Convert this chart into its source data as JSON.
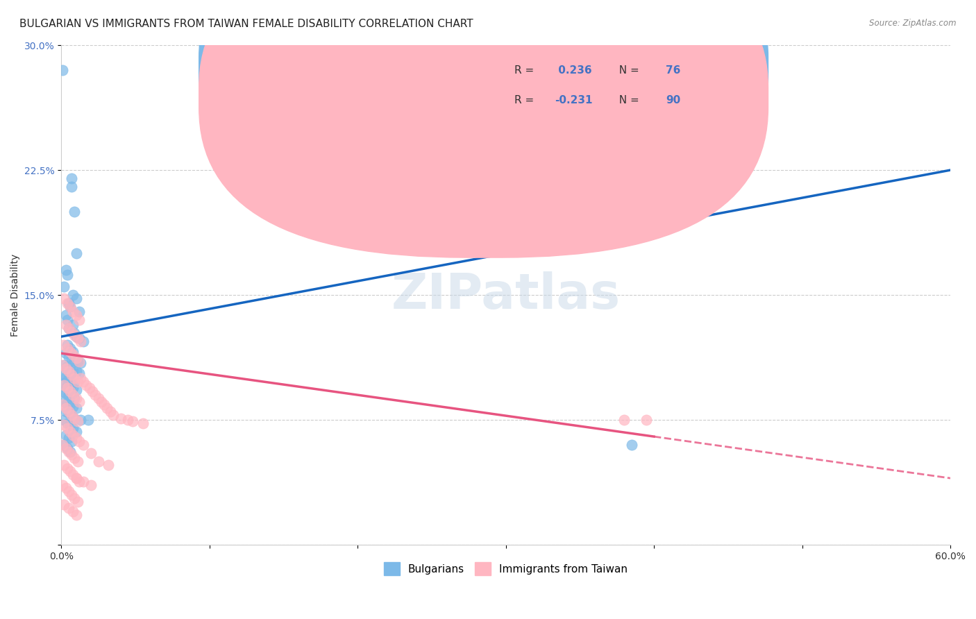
{
  "title": "BULGARIAN VS IMMIGRANTS FROM TAIWAN FEMALE DISABILITY CORRELATION CHART",
  "source": "Source: ZipAtlas.com",
  "ylabel": "Female Disability",
  "xlabel": "",
  "xlim": [
    0.0,
    0.6
  ],
  "ylim": [
    0.0,
    0.3
  ],
  "xticks": [
    0.0,
    0.1,
    0.2,
    0.3,
    0.4,
    0.5,
    0.6
  ],
  "xticklabels": [
    "0.0%",
    "",
    "",
    "",
    "",
    "",
    "60.0%"
  ],
  "yticks": [
    0.0,
    0.075,
    0.15,
    0.225,
    0.3
  ],
  "yticklabels": [
    "",
    "7.5%",
    "15.0%",
    "22.5%",
    "30.0%"
  ],
  "blue_R": 0.236,
  "blue_N": 76,
  "pink_R": -0.231,
  "pink_N": 90,
  "blue_color": "#7CB9E8",
  "pink_color": "#FFB6C1",
  "blue_line_color": "#1565C0",
  "pink_line_color": "#E75480",
  "blue_scatter": [
    [
      0.001,
      0.285
    ],
    [
      0.007,
      0.22
    ],
    [
      0.007,
      0.215
    ],
    [
      0.009,
      0.2
    ],
    [
      0.01,
      0.175
    ],
    [
      0.003,
      0.165
    ],
    [
      0.004,
      0.162
    ],
    [
      0.002,
      0.155
    ],
    [
      0.008,
      0.15
    ],
    [
      0.01,
      0.148
    ],
    [
      0.005,
      0.145
    ],
    [
      0.006,
      0.143
    ],
    [
      0.012,
      0.14
    ],
    [
      0.003,
      0.138
    ],
    [
      0.004,
      0.135
    ],
    [
      0.008,
      0.132
    ],
    [
      0.005,
      0.13
    ],
    [
      0.007,
      0.128
    ],
    [
      0.009,
      0.127
    ],
    [
      0.01,
      0.125
    ],
    [
      0.012,
      0.124
    ],
    [
      0.015,
      0.122
    ],
    [
      0.004,
      0.12
    ],
    [
      0.006,
      0.118
    ],
    [
      0.008,
      0.116
    ],
    [
      0.003,
      0.115
    ],
    [
      0.005,
      0.113
    ],
    [
      0.007,
      0.112
    ],
    [
      0.009,
      0.111
    ],
    [
      0.011,
      0.11
    ],
    [
      0.013,
      0.109
    ],
    [
      0.002,
      0.108
    ],
    [
      0.004,
      0.107
    ],
    [
      0.006,
      0.106
    ],
    [
      0.008,
      0.105
    ],
    [
      0.01,
      0.104
    ],
    [
      0.012,
      0.103
    ],
    [
      0.001,
      0.102
    ],
    [
      0.003,
      0.101
    ],
    [
      0.005,
      0.1
    ],
    [
      0.007,
      0.099
    ],
    [
      0.009,
      0.098
    ],
    [
      0.002,
      0.097
    ],
    [
      0.004,
      0.096
    ],
    [
      0.006,
      0.095
    ],
    [
      0.008,
      0.094
    ],
    [
      0.01,
      0.093
    ],
    [
      0.001,
      0.092
    ],
    [
      0.003,
      0.091
    ],
    [
      0.005,
      0.09
    ],
    [
      0.007,
      0.089
    ],
    [
      0.009,
      0.088
    ],
    [
      0.002,
      0.086
    ],
    [
      0.004,
      0.085
    ],
    [
      0.006,
      0.084
    ],
    [
      0.008,
      0.083
    ],
    [
      0.01,
      0.082
    ],
    [
      0.003,
      0.08
    ],
    [
      0.005,
      0.079
    ],
    [
      0.007,
      0.078
    ],
    [
      0.009,
      0.076
    ],
    [
      0.002,
      0.075
    ],
    [
      0.004,
      0.073
    ],
    [
      0.006,
      0.072
    ],
    [
      0.008,
      0.07
    ],
    [
      0.01,
      0.068
    ],
    [
      0.003,
      0.066
    ],
    [
      0.005,
      0.064
    ],
    [
      0.007,
      0.062
    ],
    [
      0.002,
      0.06
    ],
    [
      0.004,
      0.058
    ],
    [
      0.006,
      0.056
    ],
    [
      0.013,
      0.075
    ],
    [
      0.018,
      0.075
    ],
    [
      0.385,
      0.06
    ]
  ],
  "pink_scatter": [
    [
      0.002,
      0.148
    ],
    [
      0.004,
      0.145
    ],
    [
      0.006,
      0.143
    ],
    [
      0.008,
      0.14
    ],
    [
      0.01,
      0.138
    ],
    [
      0.012,
      0.135
    ],
    [
      0.003,
      0.132
    ],
    [
      0.005,
      0.13
    ],
    [
      0.007,
      0.128
    ],
    [
      0.009,
      0.126
    ],
    [
      0.011,
      0.124
    ],
    [
      0.013,
      0.122
    ],
    [
      0.002,
      0.12
    ],
    [
      0.004,
      0.118
    ],
    [
      0.006,
      0.116
    ],
    [
      0.008,
      0.114
    ],
    [
      0.01,
      0.112
    ],
    [
      0.012,
      0.11
    ],
    [
      0.001,
      0.108
    ],
    [
      0.003,
      0.106
    ],
    [
      0.005,
      0.104
    ],
    [
      0.007,
      0.102
    ],
    [
      0.009,
      0.1
    ],
    [
      0.011,
      0.098
    ],
    [
      0.002,
      0.096
    ],
    [
      0.004,
      0.094
    ],
    [
      0.006,
      0.092
    ],
    [
      0.008,
      0.09
    ],
    [
      0.01,
      0.088
    ],
    [
      0.012,
      0.086
    ],
    [
      0.001,
      0.084
    ],
    [
      0.003,
      0.082
    ],
    [
      0.005,
      0.08
    ],
    [
      0.007,
      0.078
    ],
    [
      0.009,
      0.076
    ],
    [
      0.011,
      0.074
    ],
    [
      0.002,
      0.072
    ],
    [
      0.004,
      0.07
    ],
    [
      0.006,
      0.068
    ],
    [
      0.008,
      0.066
    ],
    [
      0.01,
      0.064
    ],
    [
      0.012,
      0.062
    ],
    [
      0.001,
      0.06
    ],
    [
      0.003,
      0.058
    ],
    [
      0.005,
      0.056
    ],
    [
      0.007,
      0.054
    ],
    [
      0.009,
      0.052
    ],
    [
      0.011,
      0.05
    ],
    [
      0.002,
      0.048
    ],
    [
      0.004,
      0.046
    ],
    [
      0.006,
      0.044
    ],
    [
      0.008,
      0.042
    ],
    [
      0.01,
      0.04
    ],
    [
      0.012,
      0.038
    ],
    [
      0.001,
      0.036
    ],
    [
      0.003,
      0.034
    ],
    [
      0.005,
      0.032
    ],
    [
      0.007,
      0.03
    ],
    [
      0.009,
      0.028
    ],
    [
      0.011,
      0.026
    ],
    [
      0.013,
      0.1
    ],
    [
      0.015,
      0.098
    ],
    [
      0.017,
      0.096
    ],
    [
      0.019,
      0.094
    ],
    [
      0.021,
      0.092
    ],
    [
      0.023,
      0.09
    ],
    [
      0.025,
      0.088
    ],
    [
      0.027,
      0.086
    ],
    [
      0.029,
      0.084
    ],
    [
      0.031,
      0.082
    ],
    [
      0.033,
      0.08
    ],
    [
      0.035,
      0.078
    ],
    [
      0.04,
      0.076
    ],
    [
      0.045,
      0.075
    ],
    [
      0.048,
      0.074
    ],
    [
      0.055,
      0.073
    ],
    [
      0.015,
      0.06
    ],
    [
      0.02,
      0.055
    ],
    [
      0.025,
      0.05
    ],
    [
      0.032,
      0.048
    ],
    [
      0.01,
      0.04
    ],
    [
      0.015,
      0.038
    ],
    [
      0.02,
      0.036
    ],
    [
      0.395,
      0.075
    ],
    [
      0.38,
      0.075
    ],
    [
      0.002,
      0.024
    ],
    [
      0.005,
      0.022
    ],
    [
      0.008,
      0.02
    ],
    [
      0.01,
      0.018
    ]
  ],
  "watermark": "ZIPatlas",
  "background_color": "#ffffff",
  "title_fontsize": 11,
  "axis_label_fontsize": 10,
  "tick_fontsize": 10
}
